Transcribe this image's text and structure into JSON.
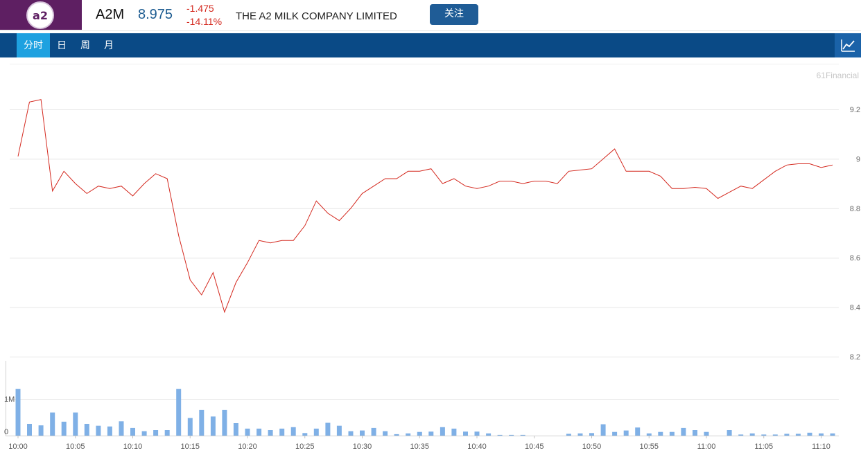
{
  "header": {
    "logo_text": "a2",
    "ticker": "A2M",
    "price": "8.975",
    "change": "-1.475",
    "change_pct": "-14.11%",
    "company": "THE A2 MILK COMPANY LIMITED",
    "follow_label": "关注",
    "colors": {
      "logo_bg": "#5e1f62",
      "price": "#1d5c91",
      "change": "#d4281e",
      "follow_bg": "#1f5c96"
    }
  },
  "tabs": [
    {
      "label": "分时",
      "active": true
    },
    {
      "label": "日",
      "active": false
    },
    {
      "label": "周",
      "active": false
    },
    {
      "label": "月",
      "active": false
    }
  ],
  "chart_icon": "line-chart-icon",
  "watermark": "61Financial",
  "chart_data": {
    "type": "line",
    "title": "",
    "xlabel": "",
    "ylabel": "",
    "ylim": [
      8.2,
      9.32
    ],
    "y_ticks": [
      "9.2",
      "9",
      "8.8",
      "8.6",
      "8.4",
      "8.2"
    ],
    "x_tick_labels": [
      "10:00",
      "10:05",
      "10:10",
      "10:15",
      "10:20",
      "10:25",
      "10:30",
      "10:35",
      "10:40",
      "10:45",
      "10:50",
      "10:55",
      "11:00",
      "11:05",
      "11:10"
    ],
    "minutes": [
      0,
      1,
      2,
      3,
      4,
      5,
      6,
      7,
      8,
      9,
      10,
      11,
      12,
      13,
      14,
      15,
      16,
      17,
      18,
      19,
      20,
      21,
      22,
      23,
      24,
      25,
      26,
      27,
      28,
      29,
      30,
      31,
      32,
      33,
      34,
      35,
      36,
      37,
      38,
      39,
      40,
      41,
      42,
      43,
      44,
      45,
      46,
      47,
      48,
      49,
      50,
      51,
      52,
      53,
      54,
      55,
      56,
      57,
      58,
      59,
      60,
      61,
      62,
      63,
      64,
      65,
      66,
      67,
      68,
      69,
      70,
      71
    ],
    "price_line": {
      "color": "#d4281e",
      "values": [
        9.01,
        9.23,
        9.24,
        8.87,
        8.95,
        8.9,
        8.86,
        8.89,
        8.88,
        8.89,
        8.85,
        8.9,
        8.94,
        8.92,
        8.69,
        8.51,
        8.45,
        8.54,
        8.38,
        8.5,
        8.58,
        8.67,
        8.66,
        8.67,
        8.67,
        8.73,
        8.83,
        8.78,
        8.75,
        8.8,
        8.86,
        8.89,
        8.92,
        8.92,
        8.95,
        8.95,
        8.96,
        8.9,
        8.92,
        8.89,
        8.88,
        8.89,
        8.91,
        8.91,
        8.9,
        8.91,
        8.91,
        8.9,
        8.95,
        8.955,
        8.96,
        9.0,
        9.04,
        8.95,
        8.95,
        8.95,
        8.93,
        8.88,
        8.88,
        8.885,
        8.88,
        8.84,
        8.865,
        8.89,
        8.88,
        8.915,
        8.95,
        8.975,
        8.98,
        8.98,
        8.965,
        8.975
      ]
    },
    "volume": {
      "color": "#7fb0e6",
      "tick_labels": [
        "1M",
        "0"
      ],
      "max": 1270000,
      "values": [
        1270000,
        320000,
        280000,
        630000,
        380000,
        630000,
        320000,
        270000,
        250000,
        390000,
        210000,
        120000,
        150000,
        150000,
        1270000,
        480000,
        700000,
        520000,
        700000,
        340000,
        190000,
        190000,
        150000,
        190000,
        230000,
        70000,
        190000,
        350000,
        270000,
        120000,
        140000,
        210000,
        120000,
        40000,
        60000,
        100000,
        110000,
        230000,
        190000,
        110000,
        110000,
        60000,
        20000,
        20000,
        20000,
        0,
        0,
        0,
        50000,
        60000,
        70000,
        310000,
        100000,
        140000,
        220000,
        60000,
        100000,
        100000,
        210000,
        150000,
        100000,
        0,
        150000,
        30000,
        60000,
        30000,
        30000,
        50000,
        50000,
        80000,
        60000,
        60000
      ]
    }
  }
}
